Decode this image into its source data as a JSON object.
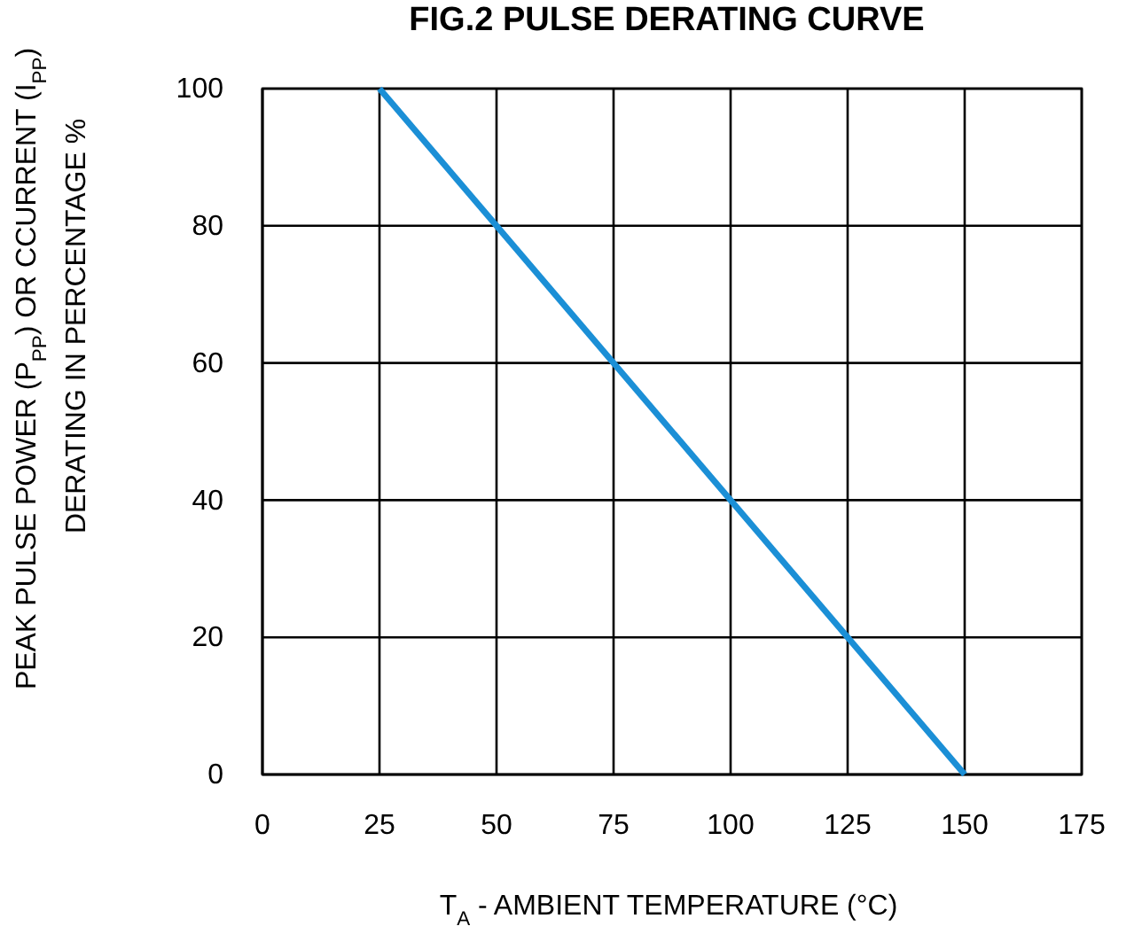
{
  "chart_data": {
    "type": "line",
    "title": "FIG.2 PULSE DERATING CURVE",
    "xlabel": "T$_{A}$ - AMBIENT TEMPERATURE (°C)",
    "ylabel": "PEAK PULSE POWER (P$_{PP}$) OR CCURRENT (I$_{PP}$)\nDERATING IN PERCENTAGE %",
    "x": [
      25,
      150
    ],
    "series": [
      {
        "color": "#1b8fd6",
        "values": [
          100,
          0
        ]
      }
    ],
    "xlim": [
      0,
      175
    ],
    "xticks": [
      0,
      25,
      50,
      75,
      100,
      125,
      150,
      175
    ],
    "ylim": [
      0,
      100
    ],
    "yticks": [
      0,
      20,
      40,
      60,
      80,
      100
    ],
    "grid": true,
    "marker": "none",
    "line_style": "solid"
  }
}
